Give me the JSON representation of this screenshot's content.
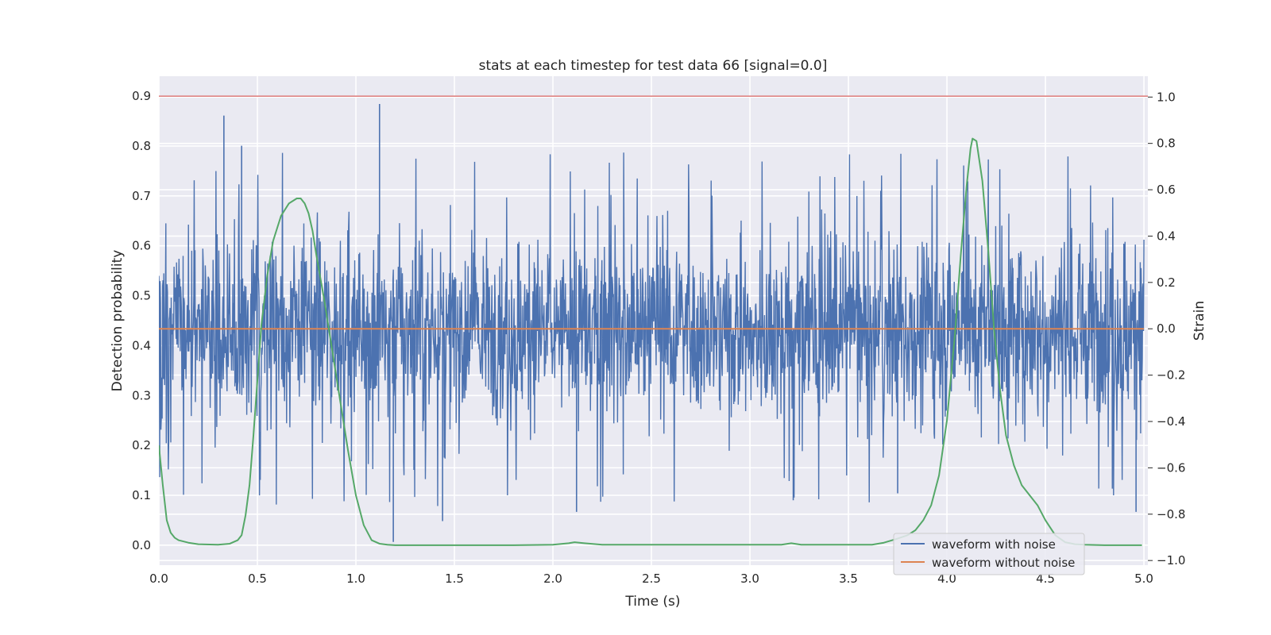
{
  "chart_data": {
    "type": "line",
    "title": "stats at each timestep for test data 66 [signal=0.0]",
    "xlabel": "Time (s)",
    "ylabel": "Detection probability",
    "y2label": "Strain",
    "xlim": [
      0.0,
      5.02
    ],
    "ylim": [
      -0.04,
      0.94
    ],
    "y2lim": [
      -1.02,
      1.09
    ],
    "xticks": [
      "0.0",
      "0.5",
      "1.0",
      "1.5",
      "2.0",
      "2.5",
      "3.0",
      "3.5",
      "4.0",
      "4.5",
      "5.0"
    ],
    "yticks": [
      "0.0",
      "0.1",
      "0.2",
      "0.3",
      "0.4",
      "0.5",
      "0.6",
      "0.7",
      "0.8",
      "0.9"
    ],
    "y2ticks": [
      "−1.0",
      "−0.8",
      "−0.6",
      "−0.4",
      "−0.2",
      "0.0",
      "0.2",
      "0.4",
      "0.6",
      "0.8",
      "1.0"
    ],
    "grid": true,
    "legend_position": "lower-right",
    "threshold": {
      "axis": "left",
      "value": 0.9,
      "color": "#d65f5f"
    },
    "series": [
      {
        "name": "waveform with noise",
        "axis": "right",
        "color": "#4c72b0",
        "x_range": [
          0.0,
          5.0
        ],
        "n_points": 2400,
        "value_range": [
          -0.92,
          0.97
        ],
        "note_spikes": [
          {
            "x": 0.33,
            "y": 0.92
          },
          {
            "x": 0.42,
            "y": 0.79
          },
          {
            "x": 1.12,
            "y": 0.97
          },
          {
            "x": 1.19,
            "y": -0.92
          },
          {
            "x": 1.44,
            "y": -0.83
          },
          {
            "x": 2.12,
            "y": -0.79
          },
          {
            "x": 3.22,
            "y": -0.74
          },
          {
            "x": 3.75,
            "y": -0.71
          },
          {
            "x": 4.96,
            "y": -0.79
          }
        ]
      },
      {
        "name": "waveform without noise",
        "axis": "right",
        "color": "#dd8452",
        "x": [
          0.0,
          5.0
        ],
        "values": [
          0.0,
          0.0
        ]
      },
      {
        "name": "",
        "axis": "left",
        "color": "#55a868",
        "x": [
          0.0,
          0.02,
          0.04,
          0.06,
          0.08,
          0.1,
          0.15,
          0.2,
          0.3,
          0.36,
          0.4,
          0.42,
          0.44,
          0.46,
          0.48,
          0.5,
          0.52,
          0.55,
          0.58,
          0.62,
          0.66,
          0.7,
          0.72,
          0.74,
          0.76,
          0.78,
          0.8,
          0.84,
          0.88,
          0.92,
          0.96,
          1.0,
          1.04,
          1.08,
          1.12,
          1.16,
          1.2,
          1.4,
          1.8,
          2.0,
          2.08,
          2.11,
          2.16,
          2.25,
          2.6,
          3.0,
          3.16,
          3.21,
          3.26,
          3.5,
          3.62,
          3.68,
          3.74,
          3.8,
          3.84,
          3.88,
          3.92,
          3.96,
          4.0,
          4.04,
          4.07,
          4.1,
          4.12,
          4.13,
          4.15,
          4.18,
          4.21,
          4.24,
          4.27,
          4.3,
          4.34,
          4.38,
          4.42,
          4.46,
          4.5,
          4.55,
          4.6,
          4.65,
          4.7,
          4.8,
          4.9,
          4.99
        ],
        "values": [
          0.2,
          0.12,
          0.05,
          0.025,
          0.015,
          0.01,
          0.005,
          0.002,
          0.001,
          0.003,
          0.01,
          0.02,
          0.06,
          0.12,
          0.22,
          0.33,
          0.44,
          0.54,
          0.61,
          0.66,
          0.685,
          0.695,
          0.695,
          0.685,
          0.665,
          0.63,
          0.58,
          0.49,
          0.39,
          0.29,
          0.19,
          0.1,
          0.04,
          0.01,
          0.003,
          0.001,
          0.0,
          0.0,
          0.0,
          0.001,
          0.004,
          0.006,
          0.004,
          0.001,
          0.001,
          0.001,
          0.001,
          0.004,
          0.001,
          0.001,
          0.001,
          0.005,
          0.012,
          0.02,
          0.03,
          0.05,
          0.08,
          0.14,
          0.25,
          0.42,
          0.58,
          0.72,
          0.795,
          0.815,
          0.81,
          0.73,
          0.59,
          0.43,
          0.31,
          0.22,
          0.16,
          0.12,
          0.1,
          0.08,
          0.05,
          0.02,
          0.006,
          0.002,
          0.001,
          0.0,
          0.0,
          0.0
        ]
      }
    ]
  }
}
